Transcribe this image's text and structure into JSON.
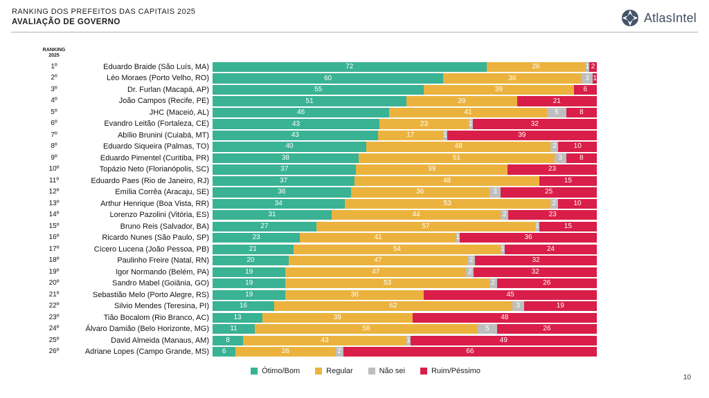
{
  "header": {
    "title_line1": "RANKING DOS PREFEITOS DAS CAPITAIS 2025",
    "title_line2": "AVALIAÇÃO DE GOVERNO",
    "brand": "AtlasIntel",
    "brand_color": "#44546A"
  },
  "page_number": "10",
  "chart_data": {
    "type": "bar",
    "orientation": "horizontal-stacked",
    "column_header_line1": "RANKING",
    "column_header_line2": "2025",
    "legend_position": "bottom-center",
    "series_names": [
      "Ótimo/Bom",
      "Regular",
      "Não sei",
      "Ruim/Péssimo"
    ],
    "series_colors": [
      "#3AB294",
      "#EBB33E",
      "#BEBEBE",
      "#D91E49"
    ],
    "value_unit": "percent",
    "rows": [
      {
        "rank": "1º",
        "name": "Eduardo Braide (São Luís, MA)",
        "values": [
          72,
          26,
          1,
          2
        ]
      },
      {
        "rank": "2º",
        "name": "Léo Moraes (Porto Velho, RO)",
        "values": [
          60,
          36,
          3,
          1
        ]
      },
      {
        "rank": "3º",
        "name": "Dr. Furlan (Macapá, AP)",
        "values": [
          55,
          39,
          null,
          6
        ]
      },
      {
        "rank": "4º",
        "name": "João Campos (Recife, PE)",
        "values": [
          51,
          29,
          null,
          21
        ]
      },
      {
        "rank": "5º",
        "name": "JHC (Maceió, AL)",
        "values": [
          46,
          41,
          5,
          8
        ]
      },
      {
        "rank": "6º",
        "name": "Evandro Leitão (Fortaleza, CE)",
        "values": [
          43,
          23,
          1,
          32
        ]
      },
      {
        "rank": "7º",
        "name": "Abílio Brunini (Cuiabá, MT)",
        "values": [
          43,
          17,
          1,
          39
        ]
      },
      {
        "rank": "8º",
        "name": "Eduardo Siqueira (Palmas, TO)",
        "values": [
          40,
          48,
          2,
          10
        ]
      },
      {
        "rank": "9º",
        "name": "Eduardo Pimentel (Curitiba, PR)",
        "values": [
          38,
          51,
          3,
          8
        ]
      },
      {
        "rank": "10º",
        "name": "Topázio Neto (Florianópolis, SC)",
        "values": [
          37,
          39,
          null,
          23
        ]
      },
      {
        "rank": "11º",
        "name": "Eduardo Paes (Rio de Janeiro, RJ)",
        "values": [
          37,
          48,
          null,
          15
        ]
      },
      {
        "rank": "12º",
        "name": "Emília Corrêa (Aracaju, SE)",
        "values": [
          36,
          36,
          3,
          25
        ]
      },
      {
        "rank": "13º",
        "name": "Arthur Henrique (Boa Vista, RR)",
        "values": [
          34,
          53,
          2,
          10
        ]
      },
      {
        "rank": "14º",
        "name": "Lorenzo Pazolini (Vitória, ES)",
        "values": [
          31,
          44,
          2,
          23
        ]
      },
      {
        "rank": "15º",
        "name": "Bruno Reis (Salvador, BA)",
        "values": [
          27,
          57,
          1,
          15
        ]
      },
      {
        "rank": "16º",
        "name": "Ricardo Nunes (São Paulo, SP)",
        "values": [
          23,
          41,
          1,
          36
        ]
      },
      {
        "rank": "17º",
        "name": "Cícero Lucena (João Pessoa, PB)",
        "values": [
          21,
          54,
          1,
          24
        ]
      },
      {
        "rank": "18º",
        "name": "Paulinho Freire (Natal, RN)",
        "values": [
          20,
          47,
          2,
          32
        ]
      },
      {
        "rank": "19º",
        "name": "Igor Normando (Belém, PA)",
        "values": [
          19,
          47,
          2,
          32
        ]
      },
      {
        "rank": "20º",
        "name": "Sandro Mabel (Goiânia, GO)",
        "values": [
          19,
          53,
          2,
          26
        ]
      },
      {
        "rank": "21º",
        "name": "Sebastião Melo (Porto Alegre, RS)",
        "values": [
          19,
          36,
          null,
          45
        ]
      },
      {
        "rank": "22º",
        "name": "Silvio Mendes (Teresina, PI)",
        "values": [
          16,
          62,
          3,
          19
        ]
      },
      {
        "rank": "23º",
        "name": "Tião Bocalom (Rio Branco, AC)",
        "values": [
          13,
          39,
          null,
          48
        ]
      },
      {
        "rank": "24º",
        "name": "Álvaro Damião (Belo Horizonte, MG)",
        "values": [
          11,
          58,
          5,
          26
        ]
      },
      {
        "rank": "25º",
        "name": "David Almeida (Manaus, AM)",
        "values": [
          8,
          43,
          1,
          49
        ]
      },
      {
        "rank": "26º",
        "name": "Adriane Lopes (Campo Grande, MS)",
        "values": [
          6,
          26,
          2,
          66
        ]
      }
    ]
  }
}
